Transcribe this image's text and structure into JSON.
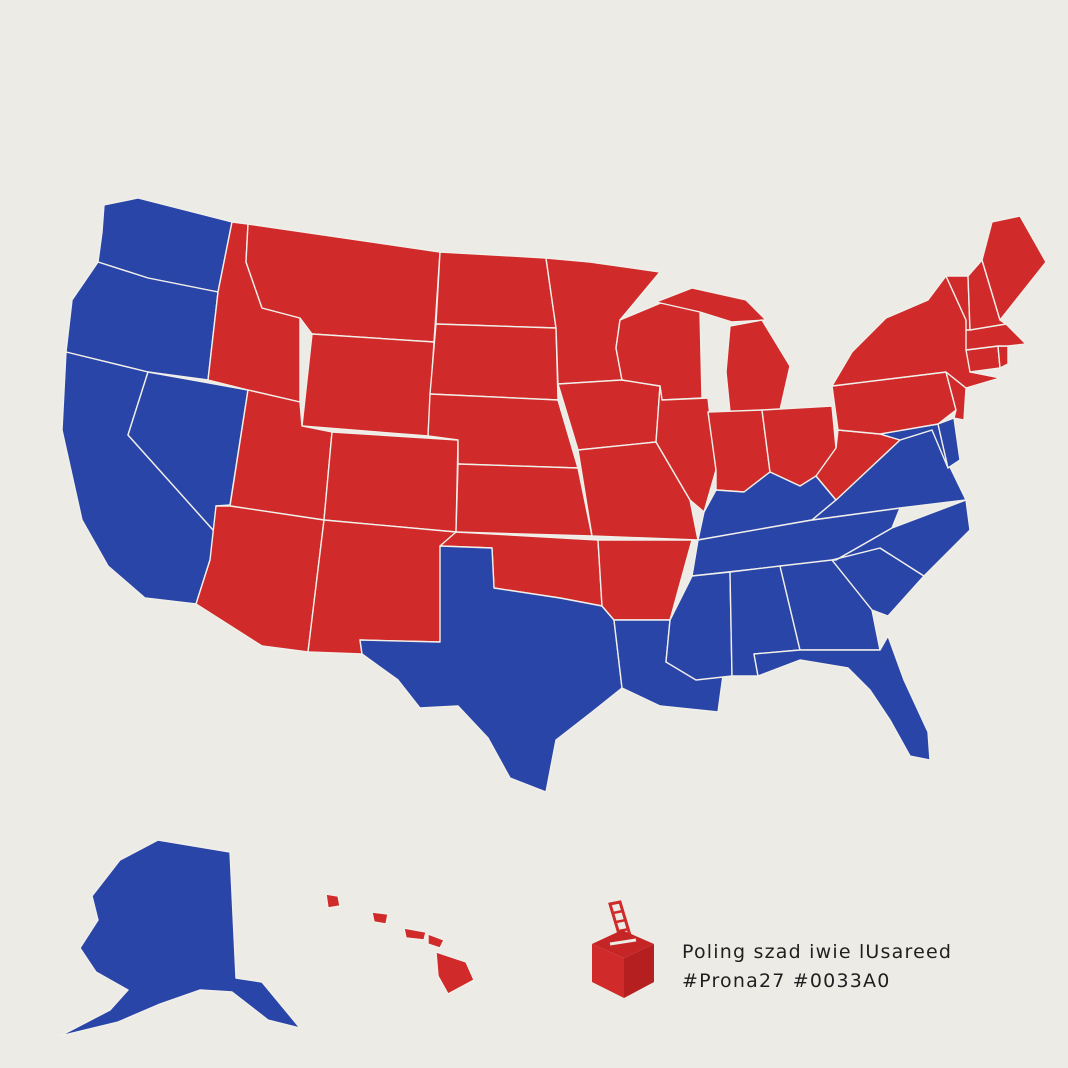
{
  "colors": {
    "background": "#ecebe6",
    "red": "#d12a2a",
    "blue": "#2a45a8",
    "border": "#f1efe9"
  },
  "map": {
    "states": [
      {
        "id": "WA",
        "party": "blue"
      },
      {
        "id": "OR",
        "party": "blue"
      },
      {
        "id": "CA",
        "party": "blue"
      },
      {
        "id": "NV",
        "party": "blue"
      },
      {
        "id": "ID",
        "party": "red"
      },
      {
        "id": "MT",
        "party": "red"
      },
      {
        "id": "WY",
        "party": "red"
      },
      {
        "id": "UT",
        "party": "red"
      },
      {
        "id": "CO",
        "party": "red"
      },
      {
        "id": "AZ",
        "party": "red"
      },
      {
        "id": "NM",
        "party": "red"
      },
      {
        "id": "ND",
        "party": "red"
      },
      {
        "id": "SD",
        "party": "red"
      },
      {
        "id": "NE",
        "party": "red"
      },
      {
        "id": "KS",
        "party": "red"
      },
      {
        "id": "OK",
        "party": "red"
      },
      {
        "id": "TX",
        "party": "blue"
      },
      {
        "id": "MN",
        "party": "red"
      },
      {
        "id": "IA",
        "party": "red"
      },
      {
        "id": "MO",
        "party": "red"
      },
      {
        "id": "AR",
        "party": "red"
      },
      {
        "id": "LA",
        "party": "blue"
      },
      {
        "id": "WI",
        "party": "red"
      },
      {
        "id": "IL",
        "party": "red"
      },
      {
        "id": "MI",
        "party": "red"
      },
      {
        "id": "IN",
        "party": "red"
      },
      {
        "id": "OH",
        "party": "red"
      },
      {
        "id": "KY",
        "party": "blue"
      },
      {
        "id": "TN",
        "party": "blue"
      },
      {
        "id": "MS",
        "party": "blue"
      },
      {
        "id": "AL",
        "party": "blue"
      },
      {
        "id": "GA",
        "party": "blue"
      },
      {
        "id": "FL",
        "party": "blue"
      },
      {
        "id": "SC",
        "party": "blue"
      },
      {
        "id": "NC",
        "party": "blue"
      },
      {
        "id": "VA",
        "party": "blue"
      },
      {
        "id": "WV",
        "party": "red"
      },
      {
        "id": "MD",
        "party": "blue"
      },
      {
        "id": "DE",
        "party": "blue"
      },
      {
        "id": "PA",
        "party": "red"
      },
      {
        "id": "NJ",
        "party": "red"
      },
      {
        "id": "NY",
        "party": "red"
      },
      {
        "id": "CT",
        "party": "red"
      },
      {
        "id": "RI",
        "party": "red"
      },
      {
        "id": "MA",
        "party": "red"
      },
      {
        "id": "VT",
        "party": "red"
      },
      {
        "id": "NH",
        "party": "red"
      },
      {
        "id": "ME",
        "party": "red"
      },
      {
        "id": "AK",
        "party": "blue"
      },
      {
        "id": "HI",
        "party": "red"
      }
    ]
  },
  "legend": {
    "icon": "ballot-box-icon",
    "line1": "Poling  szad iwie lUsareed",
    "line2": "#Prona27 #0033A0"
  }
}
